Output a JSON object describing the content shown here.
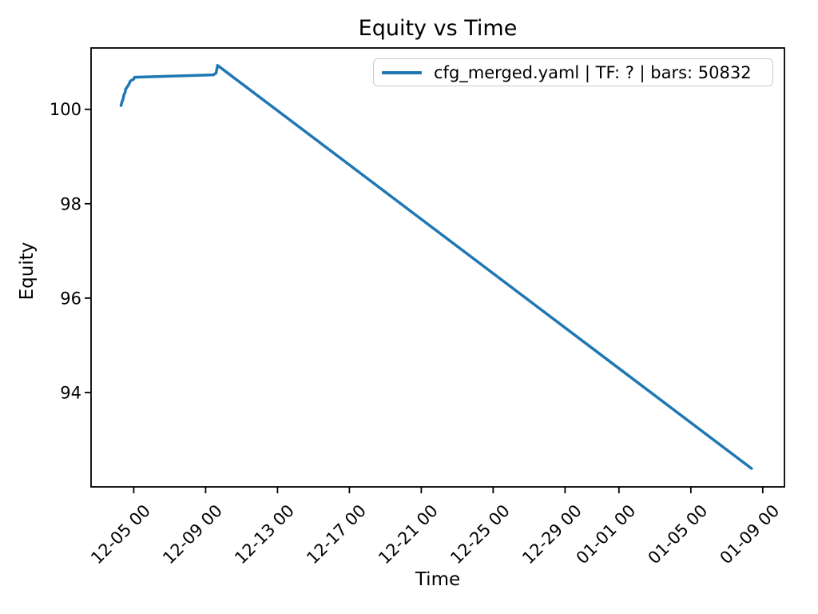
{
  "chart_data": {
    "type": "line",
    "title": "Equity vs Time",
    "xlabel": "Time",
    "ylabel": "Equity",
    "grid": false,
    "line_color": "#1f77b4",
    "line_width": 3.5,
    "legend": {
      "position": "upper right",
      "entries": [
        {
          "label": "cfg_merged.yaml | TF: ? | bars: 50832",
          "color": "#1f77b4"
        }
      ]
    },
    "x_tick_labels": [
      "12-05 00",
      "12-09 00",
      "12-13 00",
      "12-17 00",
      "12-21 00",
      "12-25 00",
      "12-29 00",
      "01-01 00",
      "01-05 00",
      "01-09 00"
    ],
    "y_ticks": [
      94,
      96,
      98,
      100
    ],
    "x_domain": [
      "12-02 15:00",
      "01-10 05:00"
    ],
    "ylim": [
      92.0,
      101.3
    ],
    "series": [
      {
        "name": "cfg_merged.yaml | TF: ? | bars: 50832",
        "points": [
          [
            "12-04 07:00",
            100.08
          ],
          [
            "12-04 08:30",
            100.17
          ],
          [
            "12-04 09:30",
            100.2
          ],
          [
            "12-04 11:00",
            100.31
          ],
          [
            "12-04 12:30",
            100.36
          ],
          [
            "12-04 13:00",
            100.42
          ],
          [
            "12-04 16:00",
            100.49
          ],
          [
            "12-04 17:30",
            100.53
          ],
          [
            "12-04 19:30",
            100.6
          ],
          [
            "12-05 00:00",
            100.64
          ],
          [
            "12-05 01:00",
            100.68
          ],
          [
            "12-09 10:30",
            100.73
          ],
          [
            "12-09 14:00",
            100.77
          ],
          [
            "12-09 16:00",
            100.93
          ],
          [
            "01-08 09:00",
            92.39
          ]
        ]
      }
    ]
  }
}
